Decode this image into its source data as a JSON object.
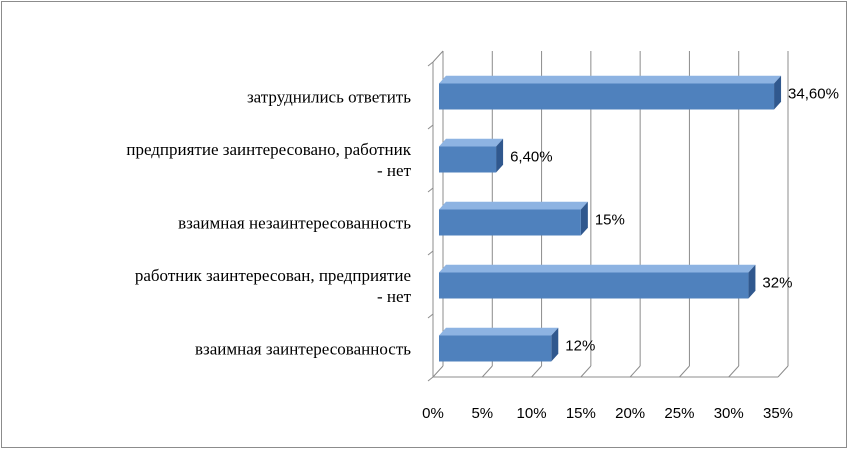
{
  "chart_data": {
    "type": "bar",
    "orientation": "horizontal",
    "three_d": true,
    "categories": [
      [
        "взаимная заинтересованность"
      ],
      [
        "работник заинтересован, предприятие",
        "- нет"
      ],
      [
        "взаимная незаинтересованность"
      ],
      [
        "предприятие заинтересовано, работник",
        "- нет"
      ],
      [
        "затруднились ответить"
      ]
    ],
    "values": [
      12,
      32,
      15,
      6.4,
      34.6
    ],
    "data_labels": [
      "12%",
      "32%",
      "15%",
      "6,40%",
      "34,60%"
    ],
    "xlim": [
      0,
      35
    ],
    "xticks": [
      0,
      5,
      10,
      15,
      20,
      25,
      30,
      35
    ],
    "xtick_labels": [
      "0%",
      "5%",
      "10%",
      "15%",
      "20%",
      "25%",
      "30%",
      "35%"
    ],
    "grid": true,
    "legend": "none",
    "colors": {
      "bar_front": "#4F81BD",
      "bar_top": "#8DB3E2",
      "bar_side": "#30588E",
      "grid": "#8c8c8c"
    }
  }
}
